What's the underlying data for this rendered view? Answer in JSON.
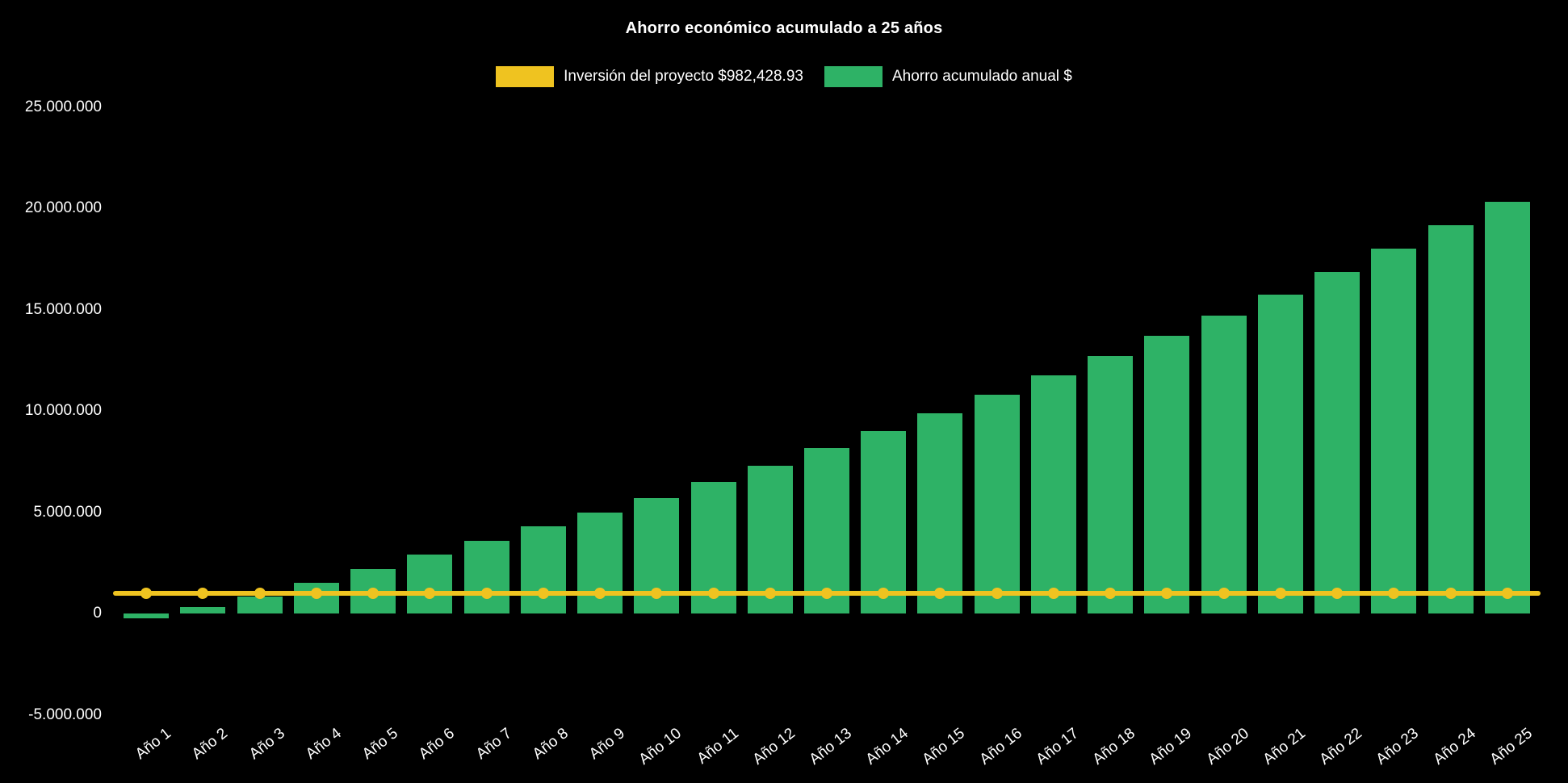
{
  "chart_data": {
    "type": "bar",
    "title": "Ahorro económico acumulado a 25 años",
    "xlabel": "",
    "ylabel": "",
    "background": "#000000",
    "text_color": "#ffffff",
    "grid": false,
    "legend_position": "top",
    "ylim": [
      -5000000,
      25000000
    ],
    "categories": [
      "Año 1",
      "Año 2",
      "Año 3",
      "Año 4",
      "Año 5",
      "Año 6",
      "Año 7",
      "Año 8",
      "Año 9",
      "Año 10",
      "Año 11",
      "Año 12",
      "Año 13",
      "Año 14",
      "Año 15",
      "Año 16",
      "Año 17",
      "Año 18",
      "Año 19",
      "Año 20",
      "Año 21",
      "Año 22",
      "Año 23",
      "Año 24",
      "Año 25"
    ],
    "series": [
      {
        "name": "Inversión del proyecto $982,428.93",
        "type": "line",
        "color": "#efc320",
        "constant_value": 982428.93
      },
      {
        "name": "Ahorro acumulado anual $",
        "type": "bar",
        "color": "#2eb266",
        "values": [
          -250000,
          300000,
          850000,
          1500000,
          2200000,
          2900000,
          3600000,
          4300000,
          5000000,
          5700000,
          6500000,
          7300000,
          8150000,
          9000000,
          9900000,
          10800000,
          11750000,
          12700000,
          13700000,
          14700000,
          15750000,
          16850000,
          18000000,
          19150000,
          20300000
        ]
      }
    ],
    "y_ticks": [
      {
        "value": 25000000,
        "label": "25.000.000"
      },
      {
        "value": 20000000,
        "label": "20.000.000"
      },
      {
        "value": 15000000,
        "label": "15.000.000"
      },
      {
        "value": 10000000,
        "label": "10.000.000"
      },
      {
        "value": 5000000,
        "label": "5.000.000"
      },
      {
        "value": 0,
        "label": "0"
      },
      {
        "value": -5000000,
        "label": "-5.000.000"
      }
    ]
  }
}
